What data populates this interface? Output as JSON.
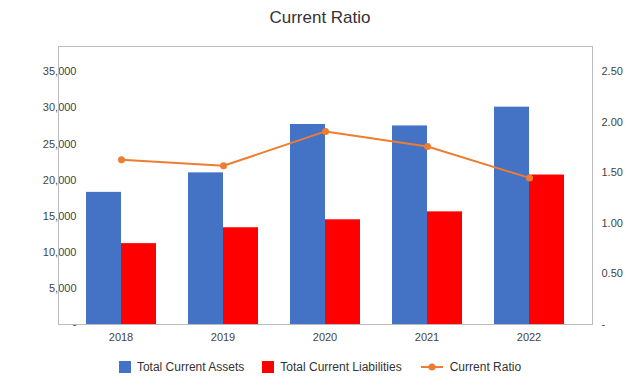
{
  "chart_data": {
    "type": "bar",
    "title": "Current Ratio",
    "categories": [
      "2018",
      "2019",
      "2020",
      "2021",
      "2022"
    ],
    "series": [
      {
        "name": "Total Current Assets",
        "type": "bar",
        "color": "#4472C4",
        "values": [
          18300,
          21000,
          27700,
          27500,
          30100
        ]
      },
      {
        "name": "Total Current Liabilities",
        "type": "bar",
        "color": "#FF0000",
        "values": [
          11200,
          13400,
          14500,
          15600,
          20700
        ]
      },
      {
        "name": "Current Ratio",
        "type": "line",
        "axis": "y2",
        "color": "#ED7D31",
        "marker": "circle",
        "values": [
          1.63,
          1.57,
          1.91,
          1.76,
          1.45
        ]
      }
    ],
    "ylim": [
      0,
      38500
    ],
    "yticks": [
      {
        "value": 0,
        "label": "-"
      },
      {
        "value": 5000,
        "label": "5,000"
      },
      {
        "value": 10000,
        "label": "10,000"
      },
      {
        "value": 15000,
        "label": "15,000"
      },
      {
        "value": 20000,
        "label": "20,000"
      },
      {
        "value": 25000,
        "label": "25,000"
      },
      {
        "value": 30000,
        "label": "30,000"
      },
      {
        "value": 35000,
        "label": "35,000"
      }
    ],
    "y2lim": [
      0,
      2.75
    ],
    "y2ticks": [
      {
        "value": 0,
        "label": "-"
      },
      {
        "value": 0.5,
        "label": "0.50"
      },
      {
        "value": 1.0,
        "label": "1.00"
      },
      {
        "value": 1.5,
        "label": "1.50"
      },
      {
        "value": 2.0,
        "label": "2.00"
      },
      {
        "value": 2.5,
        "label": "2.50"
      }
    ],
    "grid": false,
    "legend": "bottom"
  }
}
